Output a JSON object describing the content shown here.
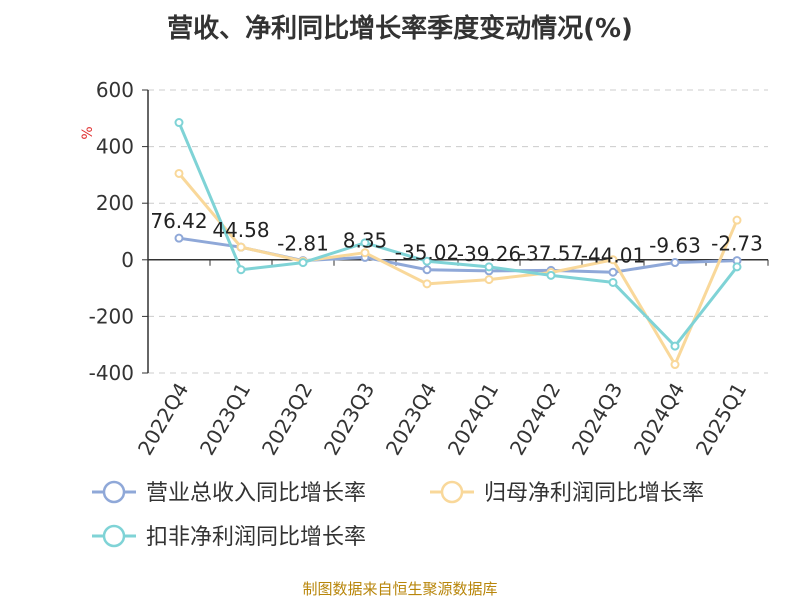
{
  "chart_data": {
    "type": "line",
    "title": "营收、净利同比增长率季度变动情况(%)",
    "ylabel": "%",
    "ylim": [
      -400,
      600
    ],
    "yticks": [
      600,
      400,
      200,
      0,
      -200,
      -400
    ],
    "grid": true,
    "legend_position": "bottom",
    "categories": [
      "2022Q4",
      "2023Q1",
      "2023Q2",
      "2023Q3",
      "2023Q4",
      "2024Q1",
      "2024Q2",
      "2024Q3",
      "2024Q4",
      "2025Q1"
    ],
    "series": [
      {
        "name": "营业总收入同比增长率",
        "color": "#8fa8d8",
        "values": [
          76.42,
          44.58,
          -2.81,
          8.35,
          -35.02,
          -39.26,
          -37.57,
          -44.01,
          -9.63,
          -2.73
        ],
        "labels": [
          "76.42",
          "44.58",
          "-2.81",
          "8.35",
          "-35.02",
          "-39.26",
          "-37.57",
          "-44.01",
          "-9.63",
          "-2.73"
        ]
      },
      {
        "name": "归母净利润同比增长率",
        "color": "#f9d89a",
        "values": [
          305,
          45,
          -5,
          25,
          -85,
          -70,
          -45,
          0,
          -370,
          140
        ]
      },
      {
        "name": "扣非净利润同比增长率",
        "color": "#7fd3d6",
        "values": [
          485,
          -35,
          -10,
          60,
          -5,
          -25,
          -55,
          -80,
          -305,
          -25
        ]
      }
    ]
  },
  "source": "制图数据来自恒生聚源数据库"
}
